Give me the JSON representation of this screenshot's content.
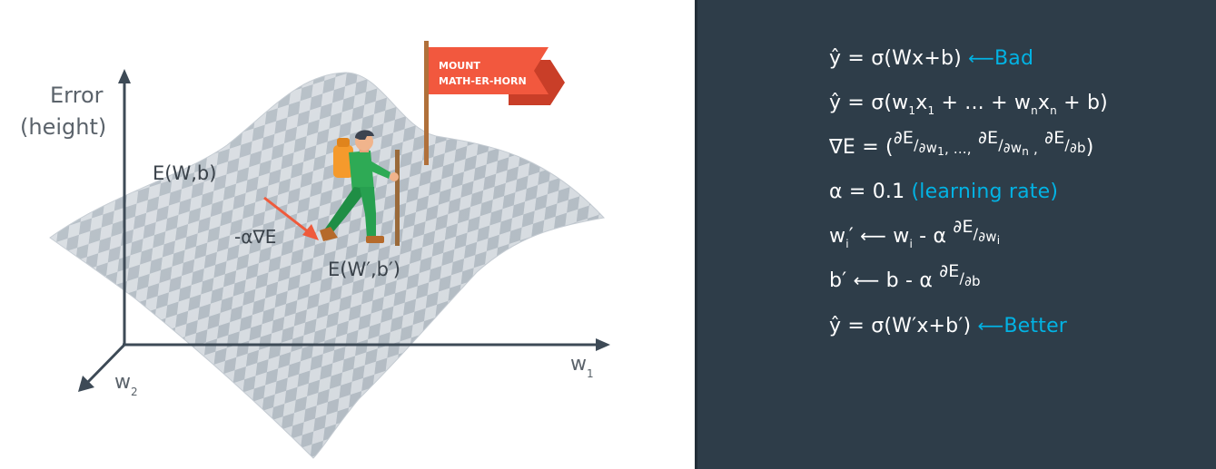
{
  "diagram": {
    "axis_y_label_line1": "Error",
    "axis_y_label_line2": "(height)",
    "axis_x_label": "w",
    "axis_x_sub": "1",
    "axis_z_label": "w",
    "axis_z_sub": "2",
    "surface_label": "E(W,b)",
    "step_label": "-α∇E",
    "new_point_label": "E(W′,b′)",
    "flag_line1": "MOUNT",
    "flag_line2": "MATH-ER-HORN",
    "colors": {
      "axis": "#3d4a56",
      "text": "#444c55",
      "flag": "#f2583e",
      "step_arrow": "#ef5a3b",
      "checker_light": "#d7dce1",
      "checker_dark": "#b3bcc4"
    }
  },
  "equations": {
    "eq1": {
      "expr": "ŷ = σ(Wx+b)",
      "arrow": "⟵",
      "note": "Bad"
    },
    "eq2": {
      "a": "ŷ = σ(w",
      "s1": "1",
      "b": "x",
      "s2": "1",
      "c": " + ... + w",
      "s3": "n",
      "d": "x",
      "s4": "n",
      "e": " + b)"
    },
    "eq3": {
      "lead": "∇E = (",
      "f1n": "∂E",
      "f1d": "∂w",
      "f1ds": "1",
      "mid": ", ...,",
      "f2n": "∂E",
      "f2d": "∂w",
      "f2ds": "n",
      "comma": " ,",
      "f3n": "∂E",
      "f3d": "∂b",
      "tail": ")"
    },
    "eq4": {
      "expr": "α =  0.1",
      "note": "(learning rate)"
    },
    "eq5": {
      "a": "w",
      "as": "i",
      "prime": "′",
      "arrow": "⟵",
      "b": "w",
      "bs": "i",
      "c": " - α",
      "fn": "∂E",
      "fd": "∂w",
      "fds": "i"
    },
    "eq6": {
      "a": "b′",
      "arrow": "⟵",
      "b": "b - α",
      "fn": "∂E",
      "fd": "∂b"
    },
    "eq7": {
      "expr": "ŷ = σ(W′x+b′)",
      "arrow": "⟵",
      "note": "Better"
    },
    "colors": {
      "accent": "#02b3e4",
      "background": "#2e3d49"
    }
  }
}
